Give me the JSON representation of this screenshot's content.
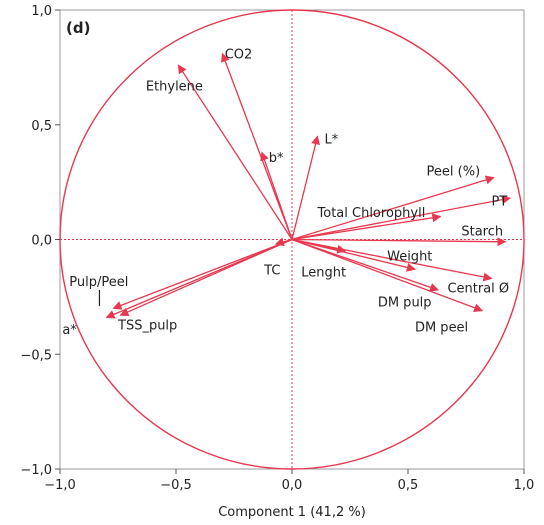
{
  "chart_data": {
    "type": "scatter",
    "subtype": "loading-plot-vectors",
    "panel_label": "(d)",
    "xlabel": "Component 1  (41,2 %)",
    "ylabel": "",
    "xlim": [
      -1.0,
      1.0
    ],
    "ylim": [
      -1.0,
      1.0
    ],
    "x_ticks": [
      -1.0,
      -0.5,
      0.0,
      0.5,
      1.0
    ],
    "x_tick_labels": [
      "−1,0",
      "−0,5",
      "0,0",
      "0,5",
      "1,0"
    ],
    "y_ticks": [
      1.0,
      0.5,
      0.0,
      -0.5,
      -1.0
    ],
    "y_tick_labels": [
      "1,0",
      "0,5",
      "0,0",
      "−0,5",
      "−1,0"
    ],
    "grid": false,
    "unit_circle": true,
    "reference_lines": [
      0,
      0
    ],
    "color": "#e8374e",
    "vectors": [
      {
        "label": "CO2",
        "x": -0.3,
        "y": 0.81,
        "lx": -0.29,
        "ly": 0.81,
        "anchor": "start"
      },
      {
        "label": "Ethylene",
        "x": -0.49,
        "y": 0.76,
        "lx": -0.63,
        "ly": 0.67,
        "anchor": "start"
      },
      {
        "label": "b*",
        "x": -0.13,
        "y": 0.38,
        "lx": -0.1,
        "ly": 0.36,
        "anchor": "start"
      },
      {
        "label": "L*",
        "x": 0.11,
        "y": 0.45,
        "lx": 0.14,
        "ly": 0.44,
        "anchor": "start"
      },
      {
        "label": "Peel (%)",
        "x": 0.87,
        "y": 0.27,
        "lx": 0.58,
        "ly": 0.3,
        "anchor": "start"
      },
      {
        "label": "PT",
        "x": 0.94,
        "y": 0.18,
        "lx": 0.86,
        "ly": 0.17,
        "anchor": "start"
      },
      {
        "label": "Total Chlorophyll",
        "x": 0.64,
        "y": 0.1,
        "lx": 0.11,
        "ly": 0.12,
        "anchor": "start"
      },
      {
        "label": "Starch",
        "x": 0.92,
        "y": -0.01,
        "lx": 0.73,
        "ly": 0.04,
        "anchor": "start"
      },
      {
        "label": "Weight",
        "x": 0.53,
        "y": -0.13,
        "lx": 0.41,
        "ly": -0.07,
        "anchor": "start"
      },
      {
        "label": "Central Ø",
        "x": 0.86,
        "y": -0.17,
        "lx": 0.67,
        "ly": -0.21,
        "anchor": "start"
      },
      {
        "label": "Lenght",
        "x": 0.23,
        "y": -0.05,
        "lx": 0.04,
        "ly": -0.14,
        "anchor": "start"
      },
      {
        "label": "DM pulp",
        "x": 0.63,
        "y": -0.22,
        "lx": 0.37,
        "ly": -0.27,
        "anchor": "start"
      },
      {
        "label": "DM peel",
        "x": 0.82,
        "y": -0.31,
        "lx": 0.53,
        "ly": -0.38,
        "anchor": "start"
      },
      {
        "label": "TC",
        "x": -0.07,
        "y": -0.02,
        "lx": -0.12,
        "ly": -0.13,
        "anchor": "start"
      },
      {
        "label": "Pulp/Peel",
        "x": -0.77,
        "y": -0.3,
        "lx": -0.96,
        "ly": -0.18,
        "anchor": "start"
      },
      {
        "label": "a*",
        "x": -0.8,
        "y": -0.34,
        "lx": -0.99,
        "ly": -0.39,
        "anchor": "start"
      },
      {
        "label": "TSS_pulp",
        "x": -0.74,
        "y": -0.33,
        "lx": -0.75,
        "ly": -0.37,
        "anchor": "start"
      }
    ]
  }
}
